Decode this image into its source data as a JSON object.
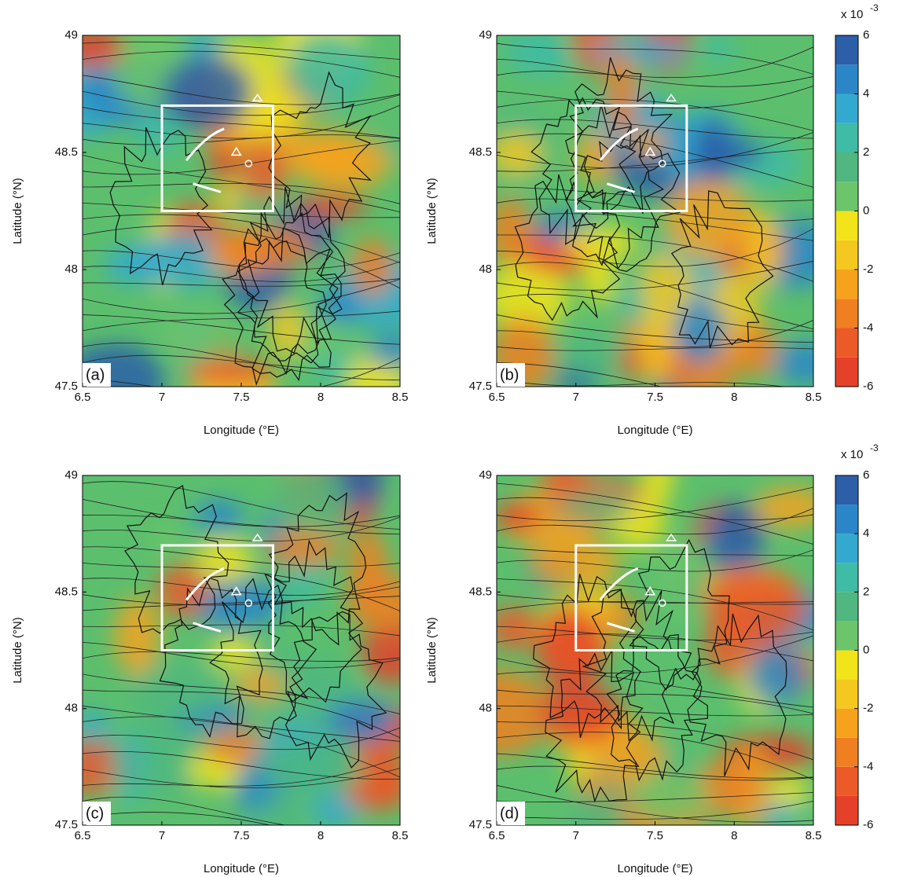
{
  "chart_data": [
    {
      "type": "contour",
      "panel_label": "(a)",
      "xlabel": "Longitude (°E)",
      "ylabel": "Latitude (°N)",
      "xlim": [
        6.5,
        8.5
      ],
      "ylim": [
        47.5,
        49
      ],
      "xticks": [
        6.5,
        7,
        7.5,
        8,
        8.5
      ],
      "yticks": [
        47.5,
        48,
        48.5,
        49
      ],
      "box": {
        "lon": [
          7,
          7.7
        ],
        "lat": [
          48.25,
          48.7
        ]
      }
    },
    {
      "type": "contour",
      "panel_label": "(b)",
      "xlabel": "Longitude (°E)",
      "ylabel": "Latitude (°N)",
      "xlim": [
        6.5,
        8.5
      ],
      "ylim": [
        47.5,
        49
      ],
      "xticks": [
        6.5,
        7,
        7.5,
        8,
        8.5
      ],
      "yticks": [
        47.5,
        48,
        48.5,
        49
      ],
      "box": {
        "lon": [
          7,
          7.7
        ],
        "lat": [
          48.25,
          48.7
        ]
      },
      "colorbar": {
        "lim": [
          -6,
          6
        ],
        "ticks": [
          -6,
          -4,
          -2,
          0,
          2,
          4,
          6
        ],
        "label": "x 10",
        "exponent": "-3",
        "colors": [
          "#e5412a",
          "#ec5a28",
          "#f07f22",
          "#f6a21d",
          "#f5c820",
          "#f2e41a",
          "#6cc56a",
          "#4fb77f",
          "#3fbba6",
          "#34a9cf",
          "#2b86c8",
          "#2c5fa8"
        ]
      }
    },
    {
      "type": "contour",
      "panel_label": "(c)",
      "xlabel": "Longitude (°E)",
      "ylabel": "Latitude (°N)",
      "xlim": [
        6.5,
        8.5
      ],
      "ylim": [
        47.5,
        49
      ],
      "xticks": [
        6.5,
        7,
        7.5,
        8,
        8.5
      ],
      "yticks": [
        47.5,
        48,
        48.5,
        49
      ],
      "box": {
        "lon": [
          7,
          7.7
        ],
        "lat": [
          48.25,
          48.7
        ]
      }
    },
    {
      "type": "contour",
      "panel_label": "(d)",
      "xlabel": "Longitude (°E)",
      "ylabel": "Latitude (°N)",
      "xlim": [
        6.5,
        8.5
      ],
      "ylim": [
        47.5,
        49
      ],
      "xticks": [
        6.5,
        7,
        7.5,
        8,
        8.5
      ],
      "yticks": [
        47.5,
        48,
        48.5,
        49
      ],
      "box": {
        "lon": [
          7,
          7.7
        ],
        "lat": [
          48.25,
          48.7
        ]
      },
      "colorbar": {
        "lim": [
          -6,
          6
        ],
        "ticks": [
          -6,
          -4,
          -2,
          0,
          2,
          4,
          6
        ],
        "label": "x 10",
        "exponent": "-3",
        "colors": [
          "#e5412a",
          "#ec5a28",
          "#f07f22",
          "#f6a21d",
          "#f5c820",
          "#f2e41a",
          "#6cc56a",
          "#4fb77f",
          "#3fbba6",
          "#34a9cf",
          "#2b86c8",
          "#2c5fa8"
        ]
      }
    }
  ]
}
